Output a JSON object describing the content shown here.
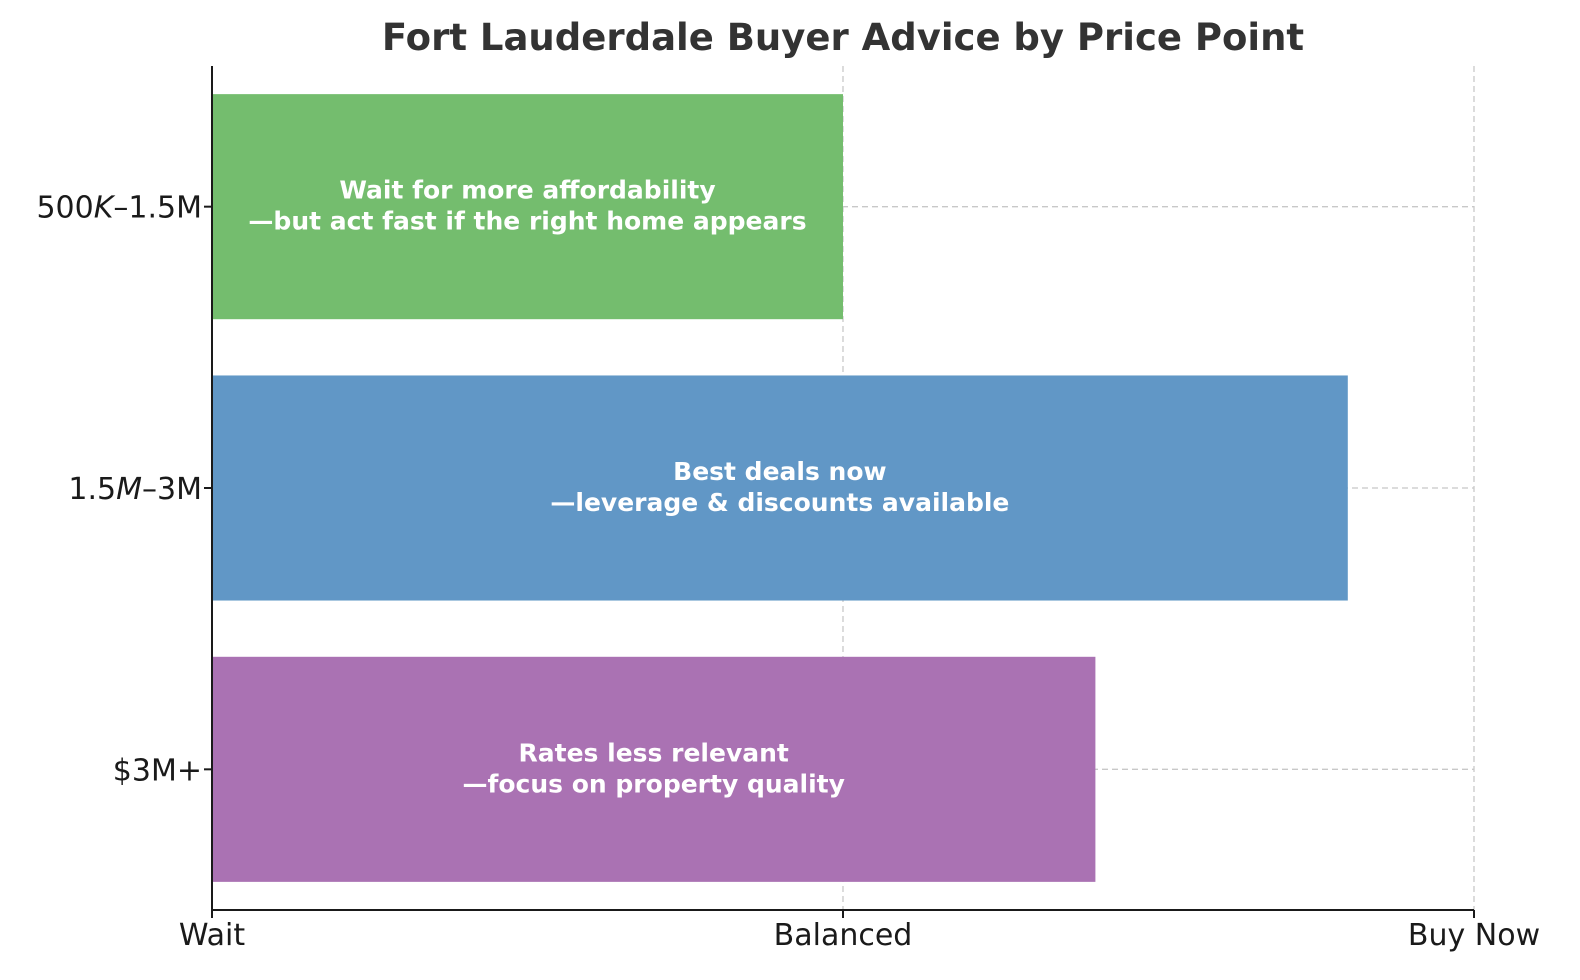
{
  "chart_data": {
    "type": "bar",
    "orientation": "horizontal",
    "title": "Fort Lauderdale Buyer Advice by Price Point",
    "xlabel": "",
    "ylabel": "",
    "x_ticks": [
      {
        "value": 0,
        "label": "Wait"
      },
      {
        "value": 1,
        "label": "Balanced"
      },
      {
        "value": 2,
        "label": "Buy Now"
      }
    ],
    "xlim": [
      0,
      2
    ],
    "grid": true,
    "categories": [
      {
        "label_html": "500<i>K</i>–1.5M",
        "label": "500K–1.5M",
        "value": 1.0,
        "color": "#74bd6e",
        "annotation": [
          "Wait for more affordability",
          "—but act fast if the right home appears"
        ]
      },
      {
        "label_html": "1.5<i>M</i>–3M",
        "label": "1.5M–3M",
        "value": 1.8,
        "color": "#6197c6",
        "annotation": [
          "Best deals now",
          "—leverage & discounts available"
        ]
      },
      {
        "label_html": "$3M+",
        "label": "$3M+",
        "value": 1.4,
        "color": "#aa72b3",
        "annotation": [
          "Rates less relevant",
          "—focus on property quality"
        ]
      }
    ]
  }
}
